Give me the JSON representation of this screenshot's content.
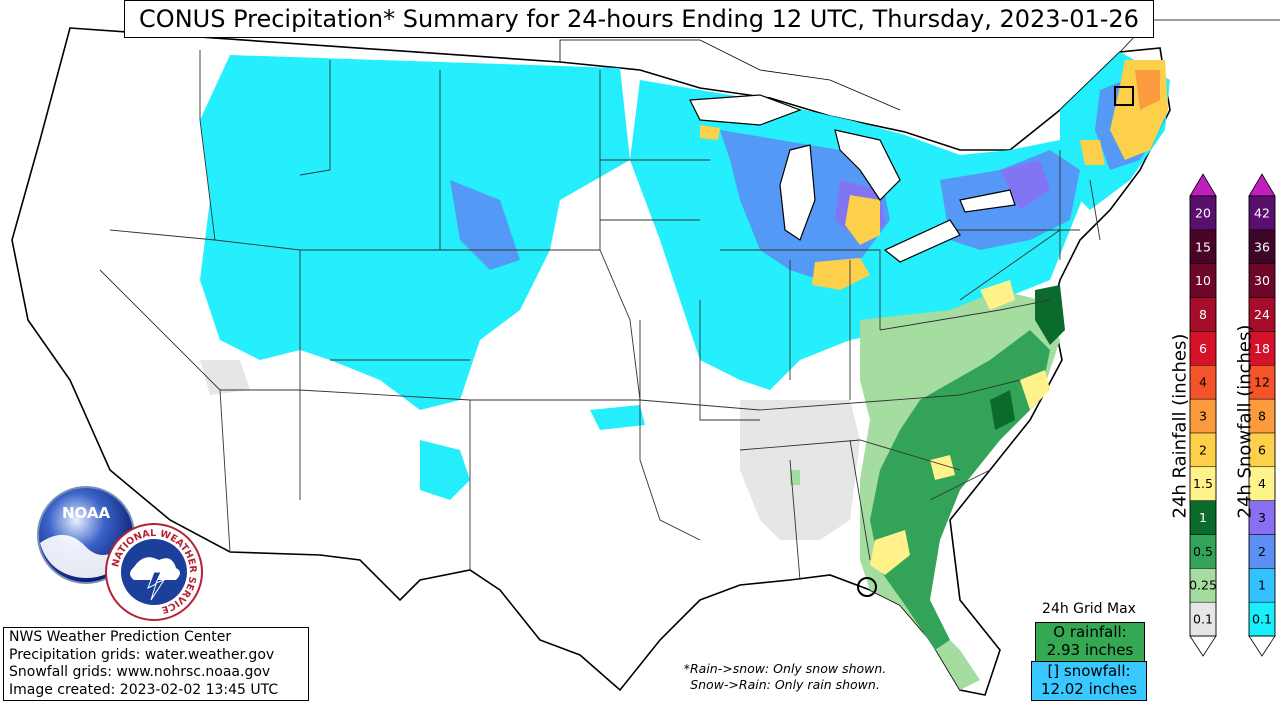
{
  "title": "CONUS Precipitation* Summary for 24-hours Ending 12 UTC, Thursday, 2023-01-26",
  "info": {
    "line1": "NWS Weather Prediction Center",
    "line2": "Precipitation grids: water.weather.gov",
    "line3": "Snowfall grids: www.nohrsc.noaa.gov",
    "line4": "Image created: 2023-02-02 13:45 UTC"
  },
  "note": {
    "line1": "*Rain->snow: Only snow shown.",
    "line2": "Snow->Rain: Only rain shown."
  },
  "grid_max": {
    "title": "24h Grid Max",
    "rain_line1": "O rainfall:",
    "rain_line2": "2.93 inches",
    "snow_line1": "[] snowfall:",
    "snow_line2": "12.02 inches"
  },
  "logos": {
    "noaa": "NOAA",
    "nws": "NATIONAL WEATHER SERVICE"
  },
  "rain_scale": {
    "label": "24h Rainfall (inches)",
    "levels": [
      {
        "label": "0.1",
        "color": "#e6e6e6"
      },
      {
        "label": "0.25",
        "color": "#a5dca0"
      },
      {
        "label": "0.5",
        "color": "#33a35a"
      },
      {
        "label": "1",
        "color": "#0a6b2c"
      },
      {
        "label": "1.5",
        "color": "#fff28a"
      },
      {
        "label": "2",
        "color": "#fcd049"
      },
      {
        "label": "3",
        "color": "#fb9b3e"
      },
      {
        "label": "4",
        "color": "#f5542a"
      },
      {
        "label": "6",
        "color": "#d6122a"
      },
      {
        "label": "8",
        "color": "#a50d2b"
      },
      {
        "label": "10",
        "color": "#6e0628"
      },
      {
        "label": "15",
        "color": "#4a0526"
      },
      {
        "label": "20",
        "color": "#5a0e6e"
      }
    ],
    "over_color": "#c01fbe"
  },
  "snow_scale": {
    "label": "24h Snowfall (inches)",
    "levels": [
      {
        "label": "0.1",
        "color": "#19eefc"
      },
      {
        "label": "1",
        "color": "#33c1ff"
      },
      {
        "label": "2",
        "color": "#5b8ff6"
      },
      {
        "label": "3",
        "color": "#8a6ff2"
      },
      {
        "label": "4",
        "color": "#fff38c"
      },
      {
        "label": "6",
        "color": "#fcd04a"
      },
      {
        "label": "8",
        "color": "#fb9b3e"
      },
      {
        "label": "12",
        "color": "#f5542a"
      },
      {
        "label": "18",
        "color": "#d6122a"
      },
      {
        "label": "24",
        "color": "#a50d2b"
      },
      {
        "label": "30",
        "color": "#6e0628"
      },
      {
        "label": "36",
        "color": "#3d0526"
      },
      {
        "label": "42",
        "color": "#5a0e6e"
      }
    ],
    "over_color": "#c01fbe"
  }
}
